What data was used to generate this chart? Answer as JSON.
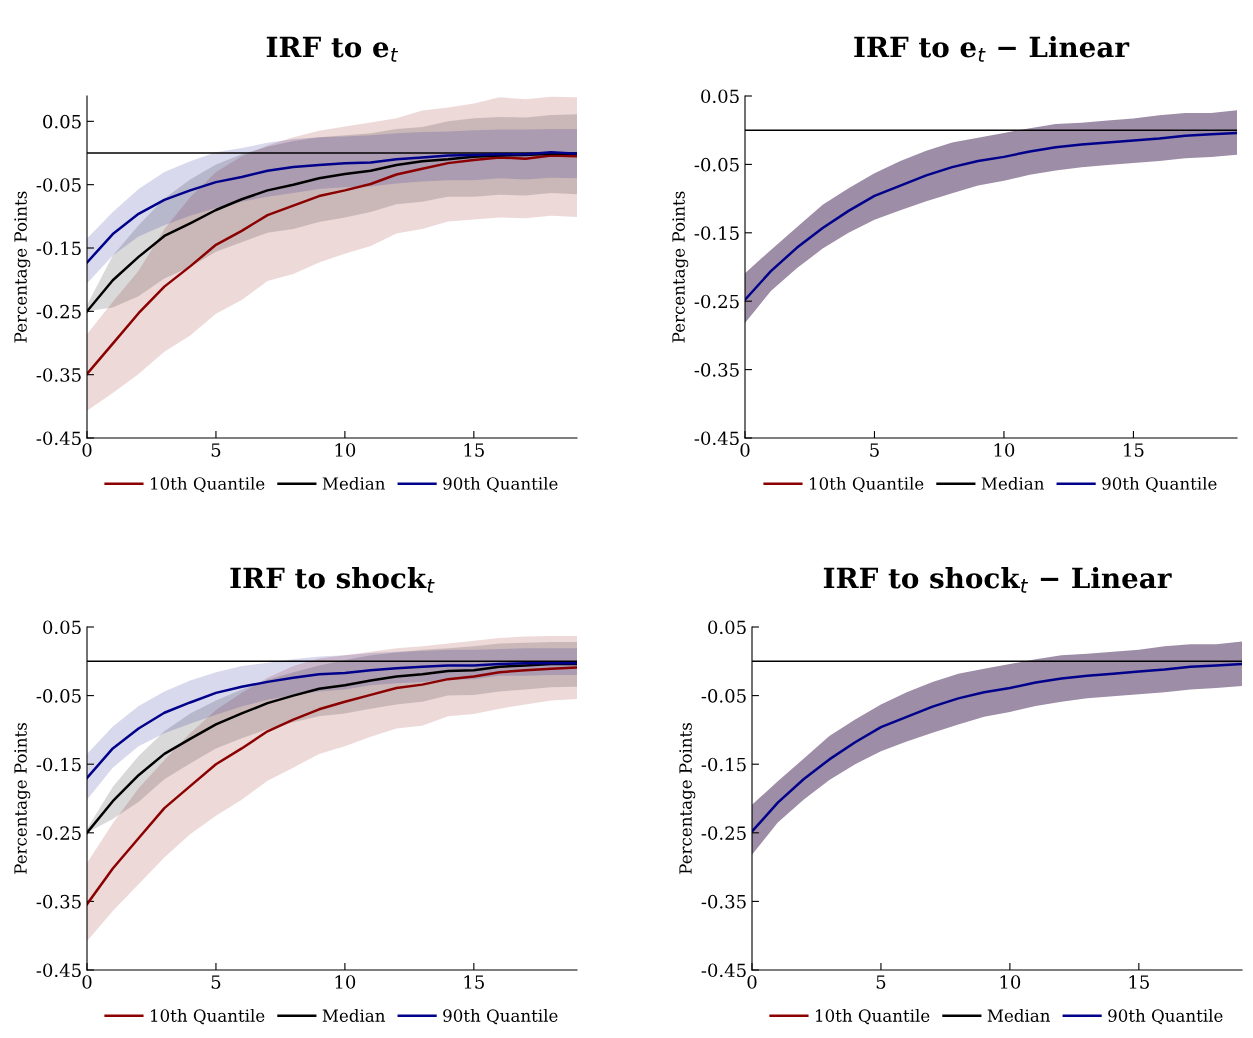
{
  "chart_data": [
    {
      "type": "line",
      "title": "IRF to e$_{t}$",
      "ylabel": "Percentage Points",
      "legend": "bottom",
      "x": [
        0,
        1,
        2,
        3,
        4,
        5,
        6,
        7,
        8,
        9,
        10,
        11,
        12,
        13,
        14,
        15,
        16,
        17,
        18,
        19
      ],
      "xlim": [
        0,
        19
      ],
      "xticks": [
        0,
        5,
        10,
        15
      ],
      "ylim": [
        -0.45,
        0.09
      ],
      "yticks": [
        -0.45,
        -0.35,
        -0.25,
        -0.15,
        -0.05,
        0.05
      ],
      "ref_lines": [
        {
          "axis": "y",
          "value": 0,
          "color": "#000000"
        }
      ],
      "series": [
        {
          "name": "10th Quantile",
          "color": "#8b0000",
          "values": [
            -0.349,
            -0.301,
            -0.253,
            -0.211,
            -0.179,
            -0.145,
            -0.123,
            -0.098,
            -0.083,
            -0.068,
            -0.059,
            -0.049,
            -0.034,
            -0.025,
            -0.016,
            -0.011,
            -0.007,
            -0.009,
            -0.004,
            -0.005
          ],
          "lower": [
            -0.407,
            -0.379,
            -0.349,
            -0.314,
            -0.288,
            -0.254,
            -0.232,
            -0.202,
            -0.191,
            -0.173,
            -0.159,
            -0.147,
            -0.127,
            -0.12,
            -0.108,
            -0.105,
            -0.102,
            -0.103,
            -0.099,
            -0.101
          ],
          "upper": [
            -0.286,
            -0.235,
            -0.186,
            -0.12,
            -0.07,
            -0.03,
            -0.005,
            0.012,
            0.025,
            0.035,
            0.042,
            0.048,
            0.055,
            0.067,
            0.072,
            0.078,
            0.088,
            0.085,
            0.089,
            0.088
          ]
        },
        {
          "name": "Median",
          "color": "#000000",
          "values": [
            -0.25,
            -0.201,
            -0.164,
            -0.131,
            -0.111,
            -0.09,
            -0.073,
            -0.059,
            -0.05,
            -0.04,
            -0.033,
            -0.028,
            -0.019,
            -0.013,
            -0.01,
            -0.006,
            -0.004,
            -0.003,
            -0.001,
            -0.001
          ],
          "lower": [
            -0.25,
            -0.244,
            -0.226,
            -0.198,
            -0.18,
            -0.156,
            -0.141,
            -0.126,
            -0.12,
            -0.109,
            -0.102,
            -0.093,
            -0.081,
            -0.077,
            -0.069,
            -0.069,
            -0.066,
            -0.067,
            -0.063,
            -0.065
          ],
          "upper": [
            -0.24,
            -0.162,
            -0.114,
            -0.072,
            -0.042,
            -0.018,
            -0.002,
            0.01,
            0.019,
            0.025,
            0.028,
            0.031,
            0.038,
            0.041,
            0.05,
            0.055,
            0.057,
            0.056,
            0.06,
            0.061
          ]
        },
        {
          "name": "90th Quantile",
          "color": "#00008b",
          "values": [
            -0.173,
            -0.128,
            -0.096,
            -0.074,
            -0.059,
            -0.046,
            -0.038,
            -0.028,
            -0.022,
            -0.019,
            -0.016,
            -0.015,
            -0.01,
            -0.007,
            -0.004,
            -0.003,
            -0.002,
            -0.002,
            0.001,
            -0.001
          ],
          "lower": [
            -0.206,
            -0.162,
            -0.132,
            -0.114,
            -0.099,
            -0.087,
            -0.077,
            -0.069,
            -0.063,
            -0.057,
            -0.054,
            -0.053,
            -0.048,
            -0.045,
            -0.043,
            -0.043,
            -0.04,
            -0.042,
            -0.039,
            -0.04
          ],
          "upper": [
            -0.135,
            -0.093,
            -0.057,
            -0.03,
            -0.013,
            0.001,
            0.008,
            0.016,
            0.022,
            0.025,
            0.026,
            0.028,
            0.031,
            0.033,
            0.034,
            0.036,
            0.037,
            0.037,
            0.038,
            0.038
          ]
        }
      ]
    },
    {
      "type": "line",
      "title": "IRF to e$_{t}$ − Linear",
      "ylabel": "Percentage Points",
      "legend": "bottom",
      "x": [
        0,
        1,
        2,
        3,
        4,
        5,
        6,
        7,
        8,
        9,
        10,
        11,
        12,
        13,
        14,
        15,
        16,
        17,
        18,
        19
      ],
      "xlim": [
        0,
        19
      ],
      "xticks": [
        0,
        5,
        10,
        15
      ],
      "ylim": [
        -0.45,
        0.05
      ],
      "yticks": [
        -0.45,
        -0.35,
        -0.25,
        -0.15,
        -0.05,
        0.05
      ],
      "ref_lines": [
        {
          "axis": "y",
          "value": 0,
          "color": "#000000"
        }
      ],
      "series": [
        {
          "name": "10th Quantile",
          "color": "#8b0000",
          "values": [
            null,
            null,
            null,
            null,
            null,
            null,
            null,
            null,
            null,
            null,
            null,
            null,
            null,
            null,
            null,
            null,
            null,
            null,
            null,
            null
          ]
        },
        {
          "name": "Median",
          "color": "#000000",
          "values": [
            null,
            null,
            null,
            null,
            null,
            null,
            null,
            null,
            null,
            null,
            null,
            null,
            null,
            null,
            null,
            null,
            null,
            null,
            null,
            null
          ]
        },
        {
          "name": "90th Quantile",
          "color": "#00008b",
          "values": [
            -0.248,
            -0.206,
            -0.172,
            -0.143,
            -0.118,
            -0.096,
            -0.081,
            -0.066,
            -0.054,
            -0.045,
            -0.039,
            -0.031,
            -0.025,
            -0.021,
            -0.018,
            -0.015,
            -0.012,
            -0.008,
            -0.006,
            -0.004
          ],
          "lower": [
            -0.282,
            -0.235,
            -0.202,
            -0.173,
            -0.15,
            -0.131,
            -0.117,
            -0.104,
            -0.092,
            -0.081,
            -0.074,
            -0.065,
            -0.059,
            -0.054,
            -0.051,
            -0.048,
            -0.045,
            -0.041,
            -0.039,
            -0.036
          ],
          "upper": [
            -0.209,
            -0.175,
            -0.142,
            -0.109,
            -0.085,
            -0.063,
            -0.045,
            -0.03,
            -0.018,
            -0.011,
            -0.004,
            0.003,
            0.009,
            0.011,
            0.014,
            0.017,
            0.022,
            0.025,
            0.025,
            0.029
          ]
        }
      ]
    },
    {
      "type": "line",
      "title": "IRF to shock$_{t}$",
      "ylabel": "Percentage Points",
      "legend": "bottom",
      "x": [
        0,
        1,
        2,
        3,
        4,
        5,
        6,
        7,
        8,
        9,
        10,
        11,
        12,
        13,
        14,
        15,
        16,
        17,
        18,
        19
      ],
      "xlim": [
        0,
        19
      ],
      "xticks": [
        0,
        5,
        10,
        15
      ],
      "ylim": [
        -0.45,
        0.05
      ],
      "yticks": [
        -0.45,
        -0.35,
        -0.25,
        -0.15,
        -0.05,
        0.05
      ],
      "ref_lines": [
        {
          "axis": "y",
          "value": 0,
          "color": "#000000"
        }
      ],
      "series": [
        {
          "name": "10th Quantile",
          "color": "#8b0000",
          "values": [
            -0.354,
            -0.302,
            -0.258,
            -0.214,
            -0.182,
            -0.15,
            -0.127,
            -0.102,
            -0.085,
            -0.07,
            -0.059,
            -0.049,
            -0.039,
            -0.034,
            -0.026,
            -0.022,
            -0.016,
            -0.013,
            -0.011,
            -0.009
          ],
          "lower": [
            -0.408,
            -0.364,
            -0.325,
            -0.286,
            -0.252,
            -0.225,
            -0.202,
            -0.174,
            -0.155,
            -0.135,
            -0.124,
            -0.11,
            -0.098,
            -0.094,
            -0.08,
            -0.077,
            -0.069,
            -0.063,
            -0.057,
            -0.055
          ],
          "upper": [
            -0.294,
            -0.236,
            -0.185,
            -0.144,
            -0.105,
            -0.071,
            -0.046,
            -0.024,
            -0.007,
            0.004,
            0.009,
            0.014,
            0.019,
            0.022,
            0.026,
            0.03,
            0.034,
            0.036,
            0.037,
            0.037
          ]
        },
        {
          "name": "Median",
          "color": "#000000",
          "values": [
            -0.25,
            -0.204,
            -0.166,
            -0.135,
            -0.113,
            -0.092,
            -0.076,
            -0.061,
            -0.05,
            -0.04,
            -0.035,
            -0.028,
            -0.022,
            -0.019,
            -0.014,
            -0.013,
            -0.008,
            -0.006,
            -0.004,
            -0.004
          ],
          "lower": [
            -0.25,
            -0.23,
            -0.205,
            -0.172,
            -0.149,
            -0.127,
            -0.112,
            -0.099,
            -0.089,
            -0.08,
            -0.076,
            -0.069,
            -0.063,
            -0.059,
            -0.05,
            -0.049,
            -0.044,
            -0.041,
            -0.038,
            -0.037
          ],
          "upper": [
            -0.244,
            -0.183,
            -0.138,
            -0.102,
            -0.076,
            -0.057,
            -0.041,
            -0.027,
            -0.016,
            -0.006,
            0.002,
            0.009,
            0.013,
            0.017,
            0.019,
            0.022,
            0.026,
            0.027,
            0.028,
            0.028
          ]
        },
        {
          "name": "90th Quantile",
          "color": "#00008b",
          "values": [
            -0.17,
            -0.127,
            -0.098,
            -0.075,
            -0.06,
            -0.046,
            -0.037,
            -0.03,
            -0.024,
            -0.019,
            -0.017,
            -0.013,
            -0.01,
            -0.008,
            -0.006,
            -0.006,
            -0.004,
            -0.003,
            -0.003,
            -0.003
          ],
          "lower": [
            -0.202,
            -0.155,
            -0.124,
            -0.105,
            -0.091,
            -0.078,
            -0.066,
            -0.056,
            -0.049,
            -0.044,
            -0.041,
            -0.035,
            -0.032,
            -0.03,
            -0.027,
            -0.026,
            -0.021,
            -0.021,
            -0.02,
            -0.02
          ],
          "upper": [
            -0.135,
            -0.095,
            -0.065,
            -0.044,
            -0.028,
            -0.016,
            -0.007,
            -0.002,
            0.003,
            0.007,
            0.009,
            0.012,
            0.014,
            0.015,
            0.017,
            0.017,
            0.018,
            0.019,
            0.019,
            0.019
          ]
        }
      ]
    },
    {
      "type": "line",
      "title": "IRF to shock$_{t}$ − Linear",
      "ylabel": "Percentage Points",
      "legend": "bottom",
      "x": [
        0,
        1,
        2,
        3,
        4,
        5,
        6,
        7,
        8,
        9,
        10,
        11,
        12,
        13,
        14,
        15,
        16,
        17,
        18,
        19
      ],
      "xlim": [
        0,
        19
      ],
      "xticks": [
        0,
        5,
        10,
        15
      ],
      "ylim": [
        -0.45,
        0.05
      ],
      "yticks": [
        -0.45,
        -0.35,
        -0.25,
        -0.15,
        -0.05,
        0.05
      ],
      "ref_lines": [
        {
          "axis": "y",
          "value": 0,
          "color": "#000000"
        }
      ],
      "series": [
        {
          "name": "10th Quantile",
          "color": "#8b0000",
          "values": [
            null,
            null,
            null,
            null,
            null,
            null,
            null,
            null,
            null,
            null,
            null,
            null,
            null,
            null,
            null,
            null,
            null,
            null,
            null,
            null
          ]
        },
        {
          "name": "Median",
          "color": "#000000",
          "values": [
            null,
            null,
            null,
            null,
            null,
            null,
            null,
            null,
            null,
            null,
            null,
            null,
            null,
            null,
            null,
            null,
            null,
            null,
            null,
            null
          ]
        },
        {
          "name": "90th Quantile",
          "color": "#00008b",
          "values": [
            -0.248,
            -0.206,
            -0.172,
            -0.143,
            -0.118,
            -0.096,
            -0.081,
            -0.066,
            -0.054,
            -0.045,
            -0.039,
            -0.031,
            -0.025,
            -0.021,
            -0.018,
            -0.015,
            -0.012,
            -0.008,
            -0.006,
            -0.004
          ],
          "lower": [
            -0.282,
            -0.235,
            -0.202,
            -0.173,
            -0.15,
            -0.131,
            -0.117,
            -0.104,
            -0.092,
            -0.081,
            -0.074,
            -0.065,
            -0.059,
            -0.054,
            -0.051,
            -0.048,
            -0.045,
            -0.041,
            -0.039,
            -0.036
          ],
          "upper": [
            -0.209,
            -0.175,
            -0.142,
            -0.109,
            -0.085,
            -0.063,
            -0.045,
            -0.03,
            -0.018,
            -0.011,
            -0.004,
            0.003,
            0.009,
            0.011,
            0.014,
            0.017,
            0.022,
            0.025,
            0.025,
            0.029
          ]
        }
      ]
    }
  ]
}
